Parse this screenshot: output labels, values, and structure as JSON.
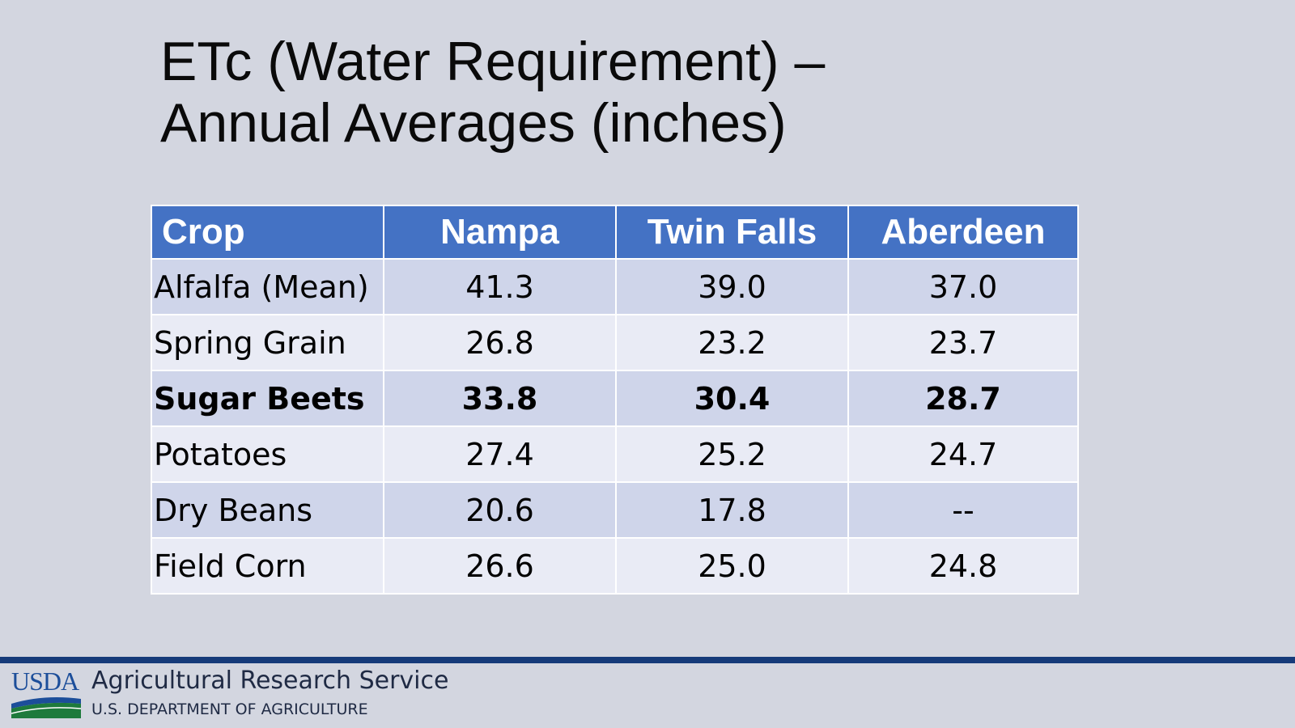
{
  "title": {
    "line1": "ETc (Water Requirement) –",
    "line2": "Annual Averages (inches)"
  },
  "table": {
    "headers": [
      "Crop",
      "Nampa",
      "Twin Falls",
      "Aberdeen"
    ],
    "rows": [
      [
        "Alfalfa (Mean)",
        "41.3",
        "39.0",
        "37.0"
      ],
      [
        "Spring Grain",
        "26.8",
        "23.2",
        "23.7"
      ],
      [
        "Sugar Beets",
        "33.8",
        "30.4",
        "28.7"
      ],
      [
        "Potatoes",
        "27.4",
        "25.2",
        "24.7"
      ],
      [
        "Dry Beans",
        "20.6",
        "17.8",
        "--"
      ],
      [
        "Field Corn",
        "26.6",
        "25.0",
        "24.8"
      ]
    ],
    "bold_row": "Sugar Beets"
  },
  "footer": {
    "logo_text": "USDA",
    "agency": "Agricultural Research Service",
    "department": "U.S. DEPARTMENT OF AGRICULTURE",
    "line_color": "#163b7a",
    "logo_green": "#1e7a3c",
    "logo_blue": "#1c4e9a"
  },
  "colors": {
    "background": "#d3d6e0",
    "header_bg": "#4472c4",
    "row_odd": "#cfd5ea",
    "row_even": "#e9ebf5"
  }
}
